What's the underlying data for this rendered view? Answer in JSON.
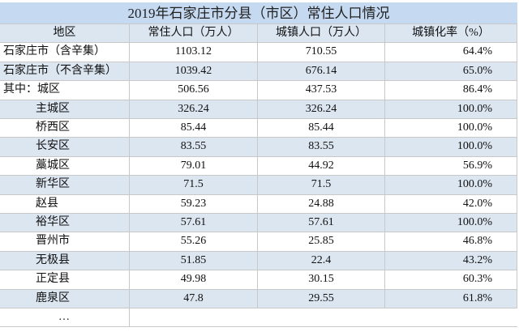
{
  "title": "2019年石家庄市分县（市区）常住人口情况",
  "header": [
    "地区",
    "常住人口（万人）",
    "城镇人口（万人）",
    "城镇化率（%）"
  ],
  "rows": [
    [
      "石家庄市（含辛集）",
      "1103.12",
      "710.55",
      "64.4%"
    ],
    [
      "石家庄市（不含辛集）",
      "1039.42",
      "676.14",
      "65.0%"
    ],
    [
      "其中：城区",
      "506.56",
      "437.53",
      "86.4%"
    ],
    [
      "主城区",
      "326.24",
      "326.24",
      "100.0%"
    ],
    [
      "桥西区",
      "85.44",
      "85.44",
      "100.0%"
    ],
    [
      "长安区",
      "83.55",
      "83.55",
      "100.0%"
    ],
    [
      "藁城区",
      "79.01",
      "44.92",
      "56.9%"
    ],
    [
      "新华区",
      "71.5",
      "71.5",
      "100.0%"
    ],
    [
      "赵县",
      "59.23",
      "24.88",
      "42.0%"
    ],
    [
      "裕华区",
      "57.61",
      "57.61",
      "100.0%"
    ],
    [
      "晋州市",
      "55.26",
      "25.85",
      "46.8%"
    ],
    [
      "无极县",
      "51.85",
      "22.4",
      "43.2%"
    ],
    [
      "正定县",
      "49.98",
      "30.15",
      "60.3%"
    ],
    [
      "鹿泉区",
      "47.8",
      "29.55",
      "61.8%"
    ],
    [
      "…"
    ]
  ]
}
